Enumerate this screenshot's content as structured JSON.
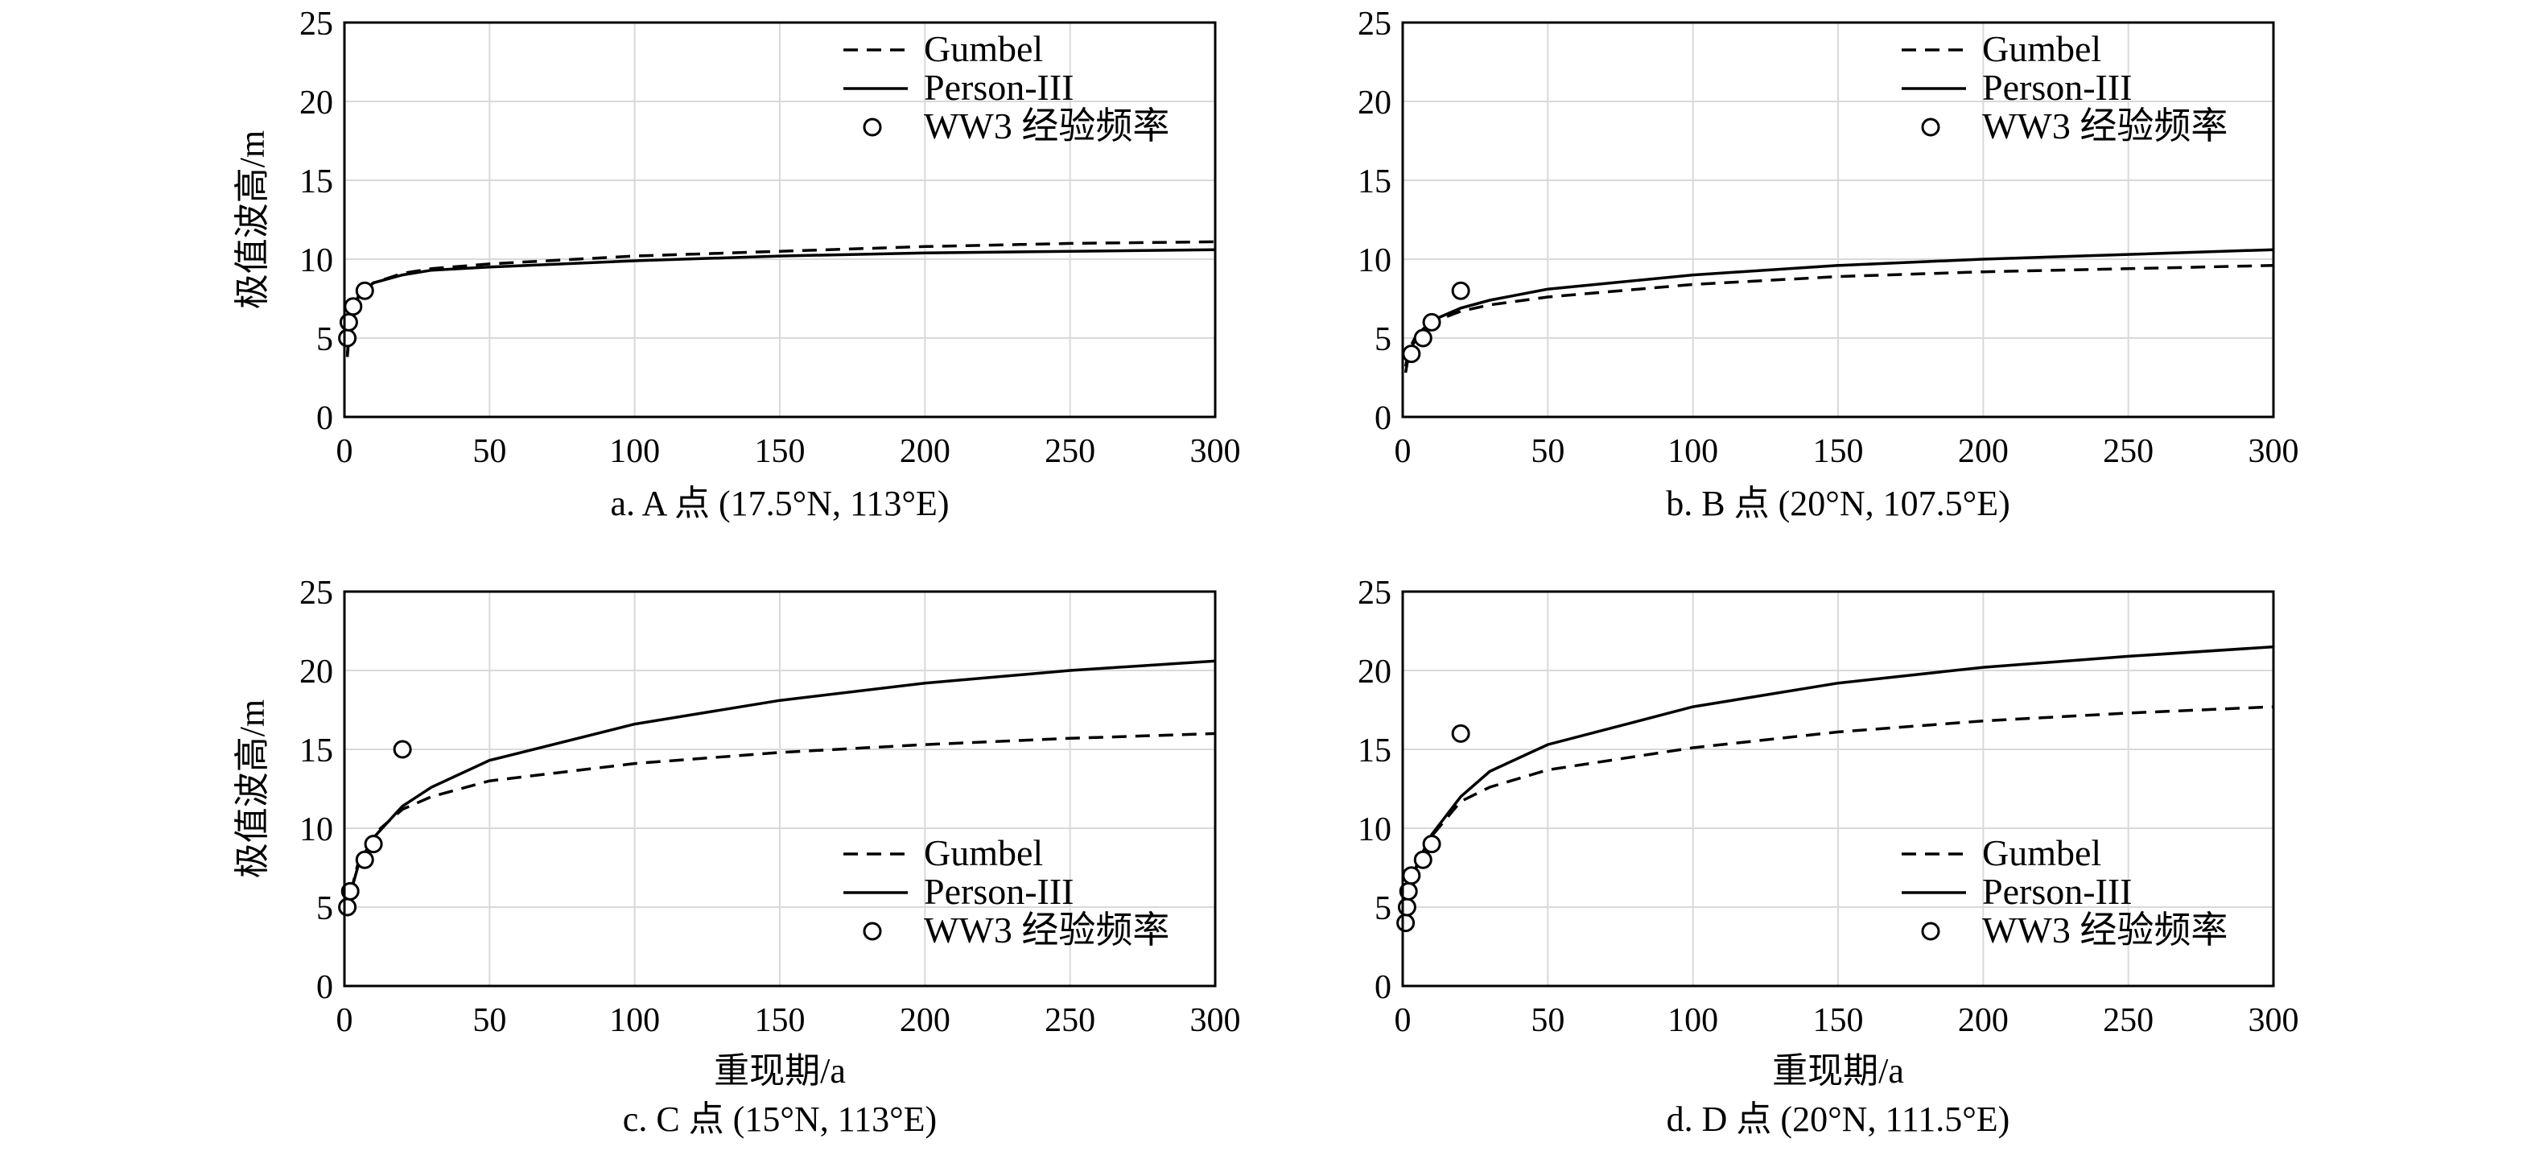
{
  "chart_data": [
    {
      "type": "line",
      "caption": "a. A 点 (17.5°N, 113°E)",
      "xlabel": "",
      "ylabel": "极值波高/m",
      "xlim": [
        0,
        300
      ],
      "ylim": [
        0,
        25
      ],
      "xticks": [
        "0",
        "50",
        "100",
        "150",
        "200",
        "250",
        "300"
      ],
      "yticks": [
        "0",
        "5",
        "10",
        "15",
        "20",
        "25"
      ],
      "legend_position": "top-right",
      "series": [
        {
          "name": "Gumbel",
          "style": "dashed",
          "x": [
            1,
            2,
            5,
            10,
            20,
            30,
            50,
            100,
            150,
            200,
            250,
            300
          ],
          "y": [
            3.8,
            6.0,
            7.7,
            8.5,
            9.1,
            9.4,
            9.7,
            10.2,
            10.5,
            10.8,
            11.0,
            11.1
          ]
        },
        {
          "name": "Person-III",
          "style": "solid",
          "x": [
            1,
            2,
            5,
            10,
            20,
            30,
            50,
            100,
            150,
            200,
            250,
            300
          ],
          "y": [
            4.0,
            6.1,
            7.8,
            8.5,
            9.0,
            9.3,
            9.5,
            9.9,
            10.2,
            10.4,
            10.5,
            10.6
          ]
        },
        {
          "name": "WW3 经验频率",
          "style": "markers",
          "x": [
            1,
            1.5,
            3,
            7
          ],
          "y": [
            5,
            6,
            7,
            8
          ]
        }
      ]
    },
    {
      "type": "line",
      "caption": "b. B 点 (20°N, 107.5°E)",
      "xlabel": "",
      "ylabel": "",
      "xlim": [
        0,
        300
      ],
      "ylim": [
        0,
        25
      ],
      "xticks": [
        "0",
        "50",
        "100",
        "150",
        "200",
        "250",
        "300"
      ],
      "yticks": [
        "0",
        "5",
        "10",
        "15",
        "20",
        "25"
      ],
      "legend_position": "top-right",
      "series": [
        {
          "name": "Gumbel",
          "style": "dashed",
          "x": [
            1,
            2,
            5,
            10,
            20,
            30,
            50,
            100,
            150,
            200,
            250,
            300
          ],
          "y": [
            3.2,
            4.2,
            5.3,
            6.0,
            6.7,
            7.1,
            7.6,
            8.4,
            8.9,
            9.2,
            9.4,
            9.6
          ]
        },
        {
          "name": "Person-III",
          "style": "solid",
          "x": [
            1,
            2,
            5,
            10,
            20,
            30,
            50,
            100,
            150,
            200,
            250,
            300
          ],
          "y": [
            2.8,
            3.9,
            5.2,
            6.1,
            6.9,
            7.4,
            8.1,
            9.0,
            9.6,
            10.0,
            10.3,
            10.6
          ]
        },
        {
          "name": "WW3 经验频率",
          "style": "markers",
          "x": [
            3,
            7,
            10,
            20
          ],
          "y": [
            4,
            5,
            6,
            8
          ]
        }
      ]
    },
    {
      "type": "line",
      "caption": "c. C 点 (15°N, 113°E)",
      "xlabel": "重现期/a",
      "ylabel": "极值波高/m",
      "xlim": [
        0,
        300
      ],
      "ylim": [
        0,
        25
      ],
      "xticks": [
        "0",
        "50",
        "100",
        "150",
        "200",
        "250",
        "300"
      ],
      "yticks": [
        "0",
        "5",
        "10",
        "15",
        "20",
        "25"
      ],
      "legend_position": "bottom-right",
      "series": [
        {
          "name": "Gumbel",
          "style": "dashed",
          "x": [
            1,
            2,
            5,
            10,
            20,
            30,
            50,
            100,
            150,
            200,
            250,
            300
          ],
          "y": [
            4.5,
            5.8,
            8.0,
            9.6,
            11.2,
            12.0,
            13.0,
            14.1,
            14.8,
            15.3,
            15.7,
            16.0
          ]
        },
        {
          "name": "Person-III",
          "style": "solid",
          "x": [
            1,
            2,
            5,
            10,
            20,
            30,
            50,
            100,
            150,
            200,
            250,
            300
          ],
          "y": [
            4.5,
            5.8,
            7.8,
            9.4,
            11.4,
            12.6,
            14.3,
            16.6,
            18.1,
            19.2,
            20.0,
            20.6
          ]
        },
        {
          "name": "WW3 经验频率",
          "style": "markers",
          "x": [
            1,
            2,
            7,
            10,
            20
          ],
          "y": [
            5,
            6,
            8,
            9,
            15
          ]
        }
      ]
    },
    {
      "type": "line",
      "caption": "d. D 点 (20°N, 111.5°E)",
      "xlabel": "重现期/a",
      "ylabel": "",
      "xlim": [
        0,
        300
      ],
      "ylim": [
        0,
        25
      ],
      "xticks": [
        "0",
        "50",
        "100",
        "150",
        "200",
        "250",
        "300"
      ],
      "yticks": [
        "0",
        "5",
        "10",
        "15",
        "20",
        "25"
      ],
      "legend_position": "bottom-right",
      "series": [
        {
          "name": "Gumbel",
          "style": "dashed",
          "x": [
            1,
            2,
            5,
            10,
            20,
            30,
            50,
            100,
            150,
            200,
            250,
            300
          ],
          "y": [
            4.0,
            5.5,
            7.7,
            9.5,
            11.7,
            12.6,
            13.7,
            15.1,
            16.1,
            16.8,
            17.3,
            17.7
          ]
        },
        {
          "name": "Person-III",
          "style": "solid",
          "x": [
            1,
            2,
            5,
            10,
            20,
            30,
            50,
            100,
            150,
            200,
            250,
            300
          ],
          "y": [
            4.2,
            5.6,
            7.8,
            9.6,
            12.0,
            13.6,
            15.3,
            17.7,
            19.2,
            20.2,
            20.9,
            21.5
          ]
        },
        {
          "name": "WW3 经验频率",
          "style": "markers",
          "x": [
            1,
            1.5,
            2,
            3,
            7,
            10,
            20
          ],
          "y": [
            4,
            5,
            6,
            7,
            8,
            9,
            16
          ]
        }
      ]
    }
  ]
}
